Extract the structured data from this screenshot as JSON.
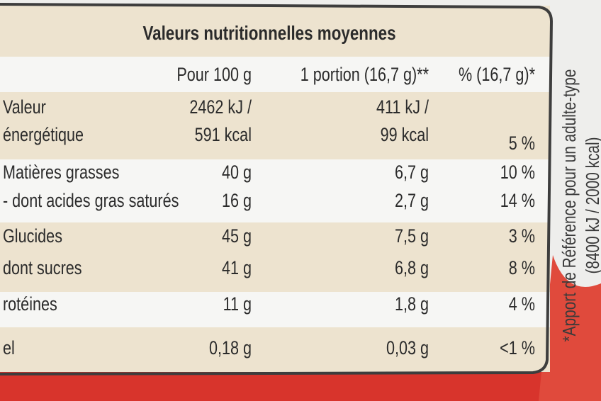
{
  "table": {
    "title": "Valeurs nutritionnelles moyennes",
    "columns": [
      "Pour 100 g",
      "1 portion (16,7 g)**",
      "% (16,7 g)*"
    ],
    "groups": [
      [
        [
          [
            "Valeur",
            "énergétique"
          ],
          [
            "2462 kJ /",
            "591 kcal"
          ],
          [
            "411 kJ /",
            "99 kcal"
          ],
          "5 %"
        ]
      ],
      [
        [
          "Matières grasses",
          "40 g",
          "6,7 g",
          "10 %"
        ],
        [
          "- dont acides gras saturés",
          "16 g",
          "2,7 g",
          "14 %"
        ]
      ],
      [
        [
          "Glucides",
          "45 g",
          "7,5 g",
          "3 %"
        ],
        [
          "dont sucres",
          "41 g",
          "6,8 g",
          "8 %"
        ]
      ],
      [
        [
          "rotéines",
          "11 g",
          "1,8 g",
          "4 %"
        ]
      ],
      [
        [
          "el",
          "0,18 g",
          "0,03 g",
          "<1 %"
        ]
      ]
    ]
  },
  "side_note": [
    "*Apport de Référence pour un adulte-type",
    "(8400 kJ / 2000 kcal)"
  ]
}
